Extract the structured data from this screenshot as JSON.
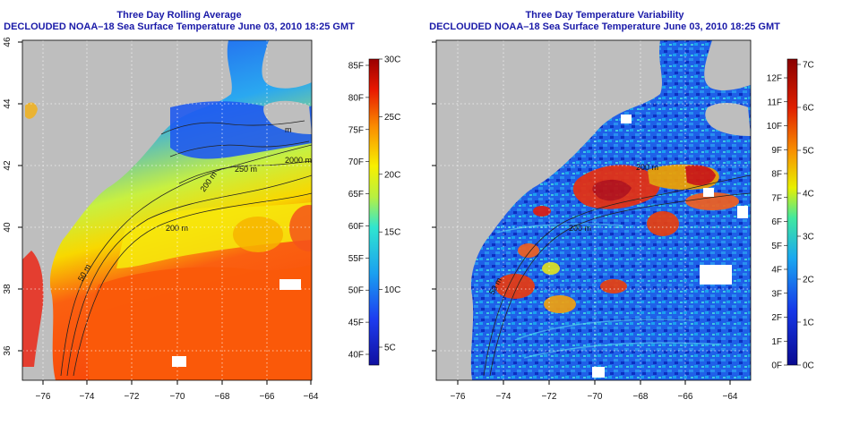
{
  "panels": [
    {
      "title": "Three Day Rolling Average",
      "subtitle": "DECLOUDED NOAA–18 Sea Surface Temperature June 03, 2010 18:25 GMT",
      "palette": "temperature",
      "colorbar": {
        "left_labels": [
          "85F",
          "80F",
          "75F",
          "70F",
          "65F",
          "60F",
          "55F",
          "50F",
          "45F",
          "40F"
        ],
        "right_labels": [
          "30C",
          "25C",
          "20C",
          "15C",
          "10C",
          "5C"
        ]
      },
      "contour_labels": [
        "50 m",
        "200 m",
        "200 m",
        "2000 m",
        "m",
        "250 m"
      ]
    },
    {
      "title": "Three Day Temperature Variability",
      "subtitle": "DECLOUDED NOAA–18 Sea Surface Temperature June 03, 2010 18:25 GMT",
      "palette": "variability",
      "colorbar": {
        "left_labels": [
          "12F",
          "11F",
          "10F",
          "9F",
          "8F",
          "7F",
          "6F",
          "5F",
          "4F",
          "3F",
          "2F",
          "1F",
          "0F"
        ],
        "right_labels": [
          "7C",
          "6C",
          "5C",
          "4C",
          "3C",
          "2C",
          "1C",
          "0C"
        ]
      },
      "contour_labels": [
        "200 m",
        "200 m",
        "50 m"
      ]
    }
  ],
  "axes": {
    "x_ticks": [
      "−76",
      "−74",
      "−72",
      "−70",
      "−68",
      "−66",
      "−64"
    ],
    "y_ticks": [
      "46",
      "44",
      "42",
      "40",
      "38",
      "36"
    ]
  },
  "colors": {
    "land": "#bebebe",
    "title": "#1a1aa8",
    "grid": "#ffffff"
  }
}
